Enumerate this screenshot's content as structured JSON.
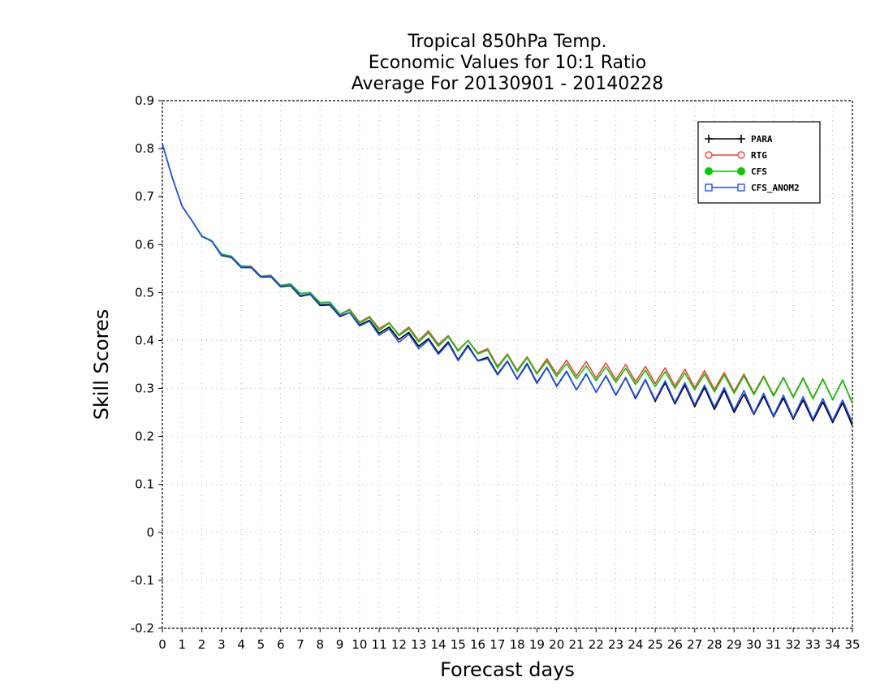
{
  "chart_data": {
    "type": "line",
    "title": [
      "Tropical 850hPa Temp.",
      "Economic Values for 10:1 Ratio",
      "Average For 20130901 - 20140228"
    ],
    "xlabel": "Forecast days",
    "ylabel": "Skill Scores",
    "xlim": [
      0,
      35
    ],
    "ylim": [
      -0.2,
      0.9
    ],
    "grid": true,
    "legend_position": "top-right",
    "x_ticks": [
      "0",
      "1",
      "2",
      "3",
      "4",
      "5",
      "6",
      "7",
      "8",
      "9",
      "10",
      "11",
      "12",
      "13",
      "14",
      "15",
      "16",
      "17",
      "18",
      "19",
      "20",
      "21",
      "22",
      "23",
      "24",
      "25",
      "26",
      "27",
      "28",
      "29",
      "30",
      "31",
      "32",
      "33",
      "34",
      "35"
    ],
    "y_ticks": [
      "0.9",
      "0.8",
      "0.7",
      "0.6",
      "0.5",
      "0.4",
      "0.3",
      "0.2",
      "0.1",
      "0",
      "-0.1",
      "-0.2"
    ],
    "x": [
      0,
      0.5,
      1,
      1.5,
      2,
      2.5,
      3,
      3.5,
      4,
      4.5,
      5,
      5.5,
      6,
      6.5,
      7,
      7.5,
      8,
      8.5,
      9,
      9.5,
      10,
      10.5,
      11,
      11.5,
      12,
      12.5,
      13,
      13.5,
      14,
      14.5,
      15,
      15.5,
      16,
      16.5,
      17,
      17.5,
      18,
      18.5,
      19,
      19.5,
      20,
      20.5,
      21,
      21.5,
      22,
      22.5,
      23,
      23.5,
      24,
      24.5,
      25,
      25.5,
      26,
      26.5,
      27,
      27.5,
      28,
      28.5,
      29,
      29.5,
      30,
      30.5,
      31,
      31.5,
      32,
      32.5,
      33,
      33.5,
      34,
      34.5,
      35
    ],
    "series": [
      {
        "name": "PARA",
        "color": "#000000",
        "marker": "plus",
        "values": [
          0.81,
          0.74,
          0.68,
          0.65,
          0.617,
          0.607,
          0.577,
          0.573,
          0.552,
          0.552,
          0.532,
          0.533,
          0.512,
          0.514,
          0.492,
          0.496,
          0.473,
          0.474,
          0.45,
          0.458,
          0.432,
          0.442,
          0.415,
          0.428,
          0.402,
          0.417,
          0.388,
          0.404,
          0.374,
          0.397,
          0.36,
          0.39,
          0.358,
          0.365,
          0.33,
          0.357,
          0.32,
          0.352,
          0.312,
          0.344,
          0.305,
          0.336,
          0.297,
          0.33,
          0.292,
          0.326,
          0.286,
          0.322,
          0.279,
          0.318,
          0.273,
          0.312,
          0.268,
          0.307,
          0.262,
          0.302,
          0.256,
          0.296,
          0.25,
          0.288,
          0.246,
          0.284,
          0.241,
          0.28,
          0.236,
          0.276,
          0.232,
          0.272,
          0.229,
          0.27,
          0.222
        ]
      },
      {
        "name": "RTG",
        "color": "#ff3b3b",
        "marker": "circle-open",
        "values": [
          0.81,
          0.74,
          0.68,
          0.65,
          0.618,
          0.608,
          0.58,
          0.576,
          0.555,
          0.555,
          0.534,
          0.536,
          0.515,
          0.518,
          0.498,
          0.5,
          0.479,
          0.48,
          0.455,
          0.465,
          0.438,
          0.45,
          0.425,
          0.437,
          0.412,
          0.428,
          0.4,
          0.42,
          0.392,
          0.41,
          0.38,
          0.4,
          0.374,
          0.383,
          0.346,
          0.372,
          0.338,
          0.366,
          0.332,
          0.362,
          0.33,
          0.359,
          0.326,
          0.356,
          0.322,
          0.353,
          0.318,
          0.35,
          0.314,
          0.346,
          0.31,
          0.343,
          0.305,
          0.34,
          0.302,
          0.337,
          0.298,
          0.333,
          0.294,
          0.33,
          0.29,
          0.326,
          0.286,
          0.323,
          0.283,
          0.322,
          0.28,
          0.32,
          0.277,
          0.318,
          0.268
        ]
      },
      {
        "name": "CFS",
        "color": "#00cc00",
        "marker": "circle-filled",
        "values": [
          0.81,
          0.74,
          0.68,
          0.65,
          0.618,
          0.608,
          0.58,
          0.576,
          0.555,
          0.554,
          0.534,
          0.535,
          0.515,
          0.518,
          0.498,
          0.5,
          0.479,
          0.48,
          0.455,
          0.463,
          0.436,
          0.448,
          0.421,
          0.436,
          0.41,
          0.425,
          0.397,
          0.416,
          0.388,
          0.408,
          0.378,
          0.4,
          0.372,
          0.38,
          0.343,
          0.37,
          0.335,
          0.364,
          0.33,
          0.357,
          0.325,
          0.352,
          0.32,
          0.347,
          0.316,
          0.345,
          0.313,
          0.342,
          0.308,
          0.338,
          0.304,
          0.335,
          0.3,
          0.332,
          0.297,
          0.33,
          0.293,
          0.328,
          0.29,
          0.326,
          0.287,
          0.324,
          0.284,
          0.322,
          0.281,
          0.321,
          0.278,
          0.319,
          0.276,
          0.317,
          0.27
        ]
      },
      {
        "name": "CFS_ANOM2",
        "color": "#1f4fff",
        "marker": "square-open",
        "values": [
          0.81,
          0.74,
          0.68,
          0.65,
          0.617,
          0.607,
          0.578,
          0.574,
          0.553,
          0.553,
          0.533,
          0.534,
          0.513,
          0.515,
          0.494,
          0.497,
          0.475,
          0.476,
          0.452,
          0.458,
          0.43,
          0.44,
          0.411,
          0.424,
          0.396,
          0.413,
          0.383,
          0.401,
          0.371,
          0.394,
          0.358,
          0.387,
          0.357,
          0.362,
          0.328,
          0.356,
          0.319,
          0.35,
          0.31,
          0.343,
          0.304,
          0.335,
          0.297,
          0.331,
          0.292,
          0.327,
          0.287,
          0.323,
          0.281,
          0.319,
          0.276,
          0.316,
          0.271,
          0.312,
          0.266,
          0.307,
          0.261,
          0.302,
          0.255,
          0.296,
          0.248,
          0.29,
          0.243,
          0.286,
          0.239,
          0.283,
          0.236,
          0.279,
          0.233,
          0.276,
          0.229
        ]
      }
    ]
  }
}
